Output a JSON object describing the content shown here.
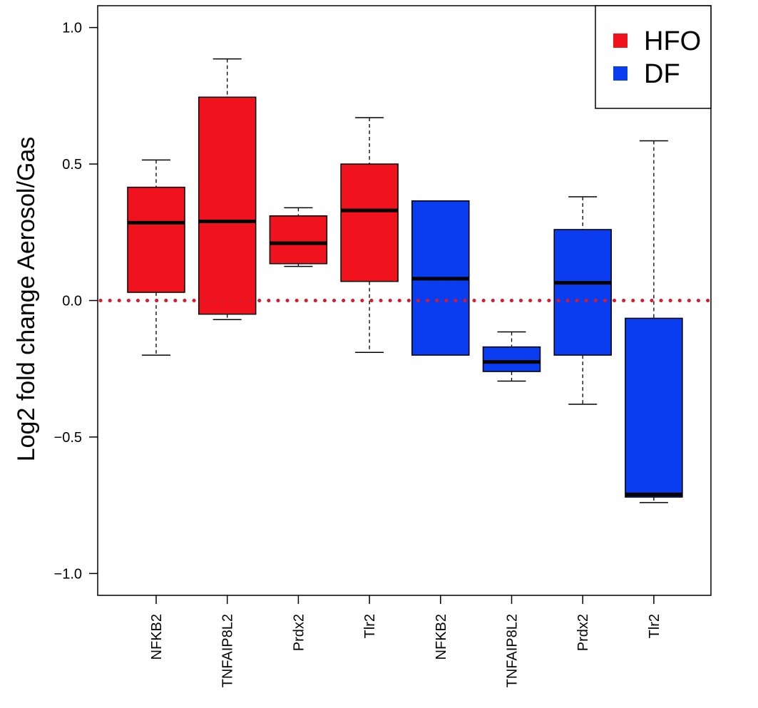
{
  "chart_data": {
    "type": "boxplot",
    "title": "",
    "xlabel": "",
    "ylabel": "Log2 fold change  Aerosol/Gas",
    "ylim": [
      -1.08,
      1.08
    ],
    "yticks": [
      -1.0,
      -0.5,
      0.0,
      0.5,
      1.0
    ],
    "ytick_labels": [
      "−1.0",
      "−0.5",
      "0.0",
      "0.5",
      "1.0"
    ],
    "grid": false,
    "legend_position": "top-right",
    "reference_line": {
      "y": 0.0,
      "style": "dotted",
      "color": "#d81b2a"
    },
    "legend": [
      {
        "label": "HFO",
        "color": "#f0121c"
      },
      {
        "label": "DF",
        "color": "#0a3cf0"
      }
    ],
    "categories": [
      "NFKB2",
      "TNFAIP8L2",
      "Prdx2",
      "Tlr2",
      "NFKB2",
      "TNFAIP8L2",
      "Prdx2",
      "Tlr2"
    ],
    "boxes": [
      {
        "label": "NFKB2",
        "group": "HFO",
        "color": "#f0121c",
        "whisker_low": -0.2,
        "q1": 0.03,
        "median": 0.285,
        "q3": 0.415,
        "whisker_high": 0.515
      },
      {
        "label": "TNFAIP8L2",
        "group": "HFO",
        "color": "#f0121c",
        "whisker_low": -0.07,
        "q1": -0.05,
        "median": 0.29,
        "q3": 0.745,
        "whisker_high": 0.885
      },
      {
        "label": "Prdx2",
        "group": "HFO",
        "color": "#f0121c",
        "whisker_low": 0.125,
        "q1": 0.135,
        "median": 0.21,
        "q3": 0.31,
        "whisker_high": 0.34
      },
      {
        "label": "Tlr2",
        "group": "HFO",
        "color": "#f0121c",
        "whisker_low": -0.19,
        "q1": 0.07,
        "median": 0.33,
        "q3": 0.5,
        "whisker_high": 0.67
      },
      {
        "label": "NFKB2",
        "group": "DF",
        "color": "#0a3cf0",
        "whisker_low": -0.2,
        "q1": -0.2,
        "median": 0.08,
        "q3": 0.365,
        "whisker_high": 0.365
      },
      {
        "label": "TNFAIP8L2",
        "group": "DF",
        "color": "#0a3cf0",
        "whisker_low": -0.295,
        "q1": -0.26,
        "median": -0.225,
        "q3": -0.17,
        "whisker_high": -0.115
      },
      {
        "label": "Prdx2",
        "group": "DF",
        "color": "#0a3cf0",
        "whisker_low": -0.38,
        "q1": -0.2,
        "median": 0.065,
        "q3": 0.26,
        "whisker_high": 0.38
      },
      {
        "label": "Tlr2",
        "group": "DF",
        "color": "#0a3cf0",
        "whisker_low": -0.74,
        "q1": -0.72,
        "median": -0.71,
        "q3": -0.065,
        "whisker_high": 0.585
      }
    ]
  }
}
